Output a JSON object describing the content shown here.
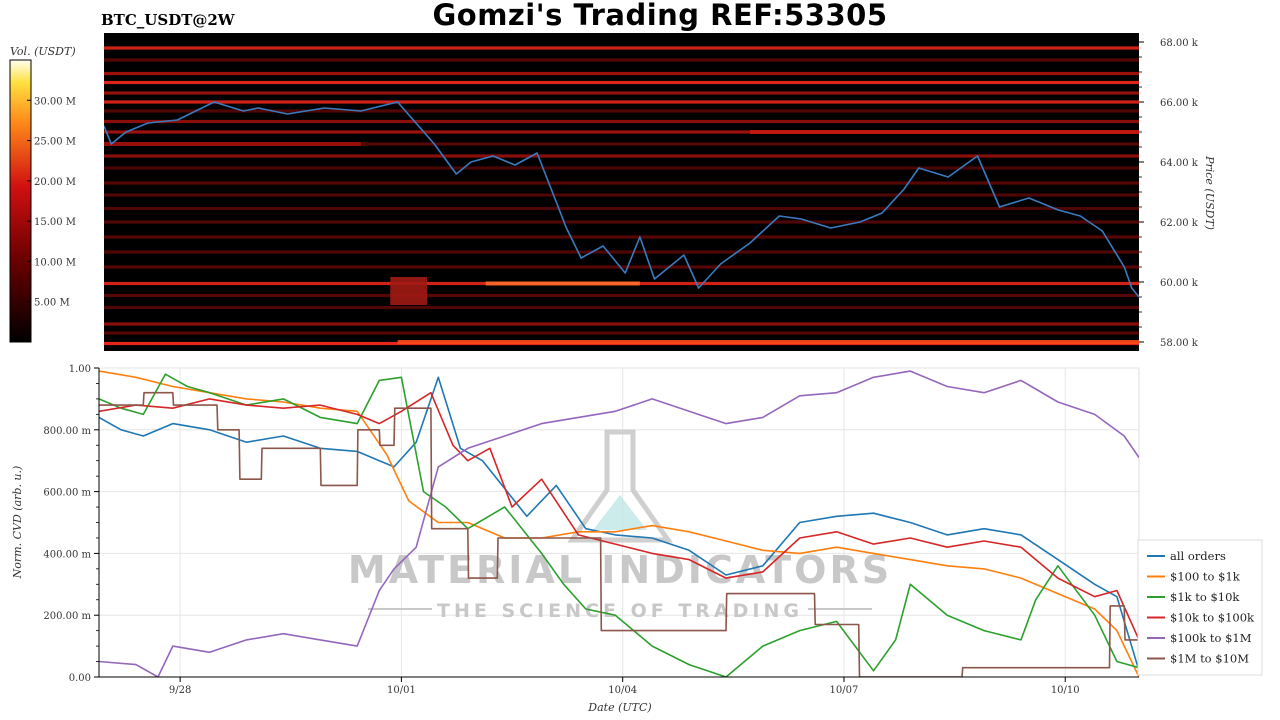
{
  "header": {
    "title": "Gomzi's Trading REF:53305",
    "symbol": "BTC_USDT@2W"
  },
  "watermark": {
    "line1": "MATERIAL INDICATORS",
    "line2": "THE SCIENCE OF TRADING"
  },
  "colors": {
    "price_line": "#3a7bbf",
    "heatmap_bg": "#000000",
    "heatmap_hot": "#ff3a10"
  },
  "chart_data": [
    {
      "type": "heatmap",
      "title": "",
      "colorbar_label": "Vol. (USDT)",
      "colorbar_ticks": [
        "5.00 M",
        "10.00 M",
        "15.00 M",
        "20.00 M",
        "25.00 M",
        "30.00 M"
      ],
      "colorbar_values": [
        5,
        10,
        15,
        20,
        25,
        30
      ],
      "colorbar_max": 35,
      "ylabel": "Price (USDT)",
      "y_ticks": [
        "58.00 k",
        "60.00 k",
        "62.00 k",
        "64.00 k",
        "66.00 k",
        "68.00 k"
      ],
      "y_values": [
        58000,
        60000,
        62000,
        64000,
        66000,
        68000
      ],
      "ylim": [
        57700,
        68300
      ],
      "xlim": [
        0,
        14.1
      ],
      "price_series": {
        "name": "price",
        "x": [
          0,
          0.1,
          0.3,
          0.6,
          1.0,
          1.5,
          1.9,
          2.1,
          2.5,
          3.0,
          3.5,
          4.0,
          4.5,
          4.8,
          5.0,
          5.3,
          5.6,
          5.9,
          6.3,
          6.5,
          6.8,
          7.1,
          7.3,
          7.5,
          7.9,
          8.1,
          8.4,
          8.8,
          9.2,
          9.5,
          9.9,
          10.3,
          10.6,
          10.9,
          11.1,
          11.5,
          11.9,
          12.2,
          12.6,
          13.0,
          13.3,
          13.6,
          13.9,
          14.0,
          14.1
        ],
        "y": [
          65200,
          64600,
          65000,
          65300,
          65400,
          66000,
          65700,
          65800,
          65600,
          65800,
          65700,
          66000,
          64600,
          63600,
          64000,
          64200,
          63900,
          64300,
          61800,
          60800,
          61200,
          60300,
          61500,
          60100,
          60900,
          59800,
          60600,
          61300,
          62200,
          62100,
          61800,
          62000,
          62300,
          63100,
          63800,
          63500,
          64200,
          62500,
          62800,
          62400,
          62200,
          61700,
          60500,
          59800,
          59500
        ]
      },
      "liquidity_levels": [
        {
          "price": 67800,
          "intensity": 0.55
        },
        {
          "price": 67400,
          "intensity": 0.35
        },
        {
          "price": 66950,
          "intensity": 0.5
        },
        {
          "price": 66650,
          "intensity": 0.6
        },
        {
          "price": 66300,
          "intensity": 0.45
        },
        {
          "price": 66000,
          "intensity": 0.55
        },
        {
          "price": 65700,
          "intensity": 0.3
        },
        {
          "price": 65350,
          "intensity": 0.4
        },
        {
          "price": 65000,
          "intensity": 0.5
        },
        {
          "price": 64600,
          "intensity": 0.35
        },
        {
          "price": 64200,
          "intensity": 0.4
        },
        {
          "price": 63800,
          "intensity": 0.25
        },
        {
          "price": 63300,
          "intensity": 0.35
        },
        {
          "price": 62900,
          "intensity": 0.3
        },
        {
          "price": 62450,
          "intensity": 0.3
        },
        {
          "price": 62000,
          "intensity": 0.3
        },
        {
          "price": 61500,
          "intensity": 0.35
        },
        {
          "price": 61000,
          "intensity": 0.3
        },
        {
          "price": 60500,
          "intensity": 0.35
        },
        {
          "price": 59950,
          "intensity": 0.55
        },
        {
          "price": 59550,
          "intensity": 0.35
        },
        {
          "price": 59150,
          "intensity": 0.3
        },
        {
          "price": 58600,
          "intensity": 0.4
        },
        {
          "price": 58300,
          "intensity": 0.35
        },
        {
          "price": 57950,
          "intensity": 0.65
        }
      ]
    },
    {
      "type": "line",
      "title": "",
      "xlabel": "Date (UTC)",
      "ylabel": "Norm. CVD (arb. u.)",
      "x_ticks": [
        "9/28",
        "10/01",
        "10/04",
        "10/07",
        "10/10"
      ],
      "x_tick_values": [
        1.1,
        4.1,
        7.1,
        10.1,
        13.1
      ],
      "xlim": [
        0,
        14.1
      ],
      "y_ticks": [
        "0.00",
        "200.00 m",
        "400.00 m",
        "600.00 m",
        "800.00 m",
        "1.00"
      ],
      "y_tick_values": [
        0,
        0.2,
        0.4,
        0.6,
        0.8,
        1.0
      ],
      "ylim": [
        0,
        1
      ],
      "legend": "center-right",
      "series": [
        {
          "name": "all orders",
          "color": "#1f77b4",
          "x": [
            0,
            0.3,
            0.6,
            1.0,
            1.5,
            2.0,
            2.5,
            3.0,
            3.5,
            4.0,
            4.3,
            4.6,
            4.9,
            5.2,
            5.5,
            5.8,
            6.2,
            6.6,
            7.0,
            7.5,
            8.0,
            8.5,
            9.0,
            9.5,
            10.0,
            10.5,
            11.0,
            11.5,
            12.0,
            12.5,
            13.0,
            13.5,
            13.8,
            14.1
          ],
          "y": [
            0.84,
            0.8,
            0.78,
            0.82,
            0.8,
            0.76,
            0.78,
            0.74,
            0.73,
            0.68,
            0.76,
            0.97,
            0.74,
            0.7,
            0.61,
            0.52,
            0.62,
            0.48,
            0.46,
            0.45,
            0.41,
            0.33,
            0.36,
            0.5,
            0.52,
            0.53,
            0.5,
            0.46,
            0.48,
            0.46,
            0.38,
            0.3,
            0.26,
            0.02
          ]
        },
        {
          "name": "$100 to $1k",
          "color": "#ff7f0e",
          "x": [
            0,
            0.5,
            1.0,
            1.5,
            2.0,
            2.5,
            3.0,
            3.5,
            3.9,
            4.2,
            4.6,
            5.0,
            5.5,
            6.0,
            6.5,
            7.0,
            7.5,
            8.0,
            8.5,
            9.0,
            9.5,
            10.0,
            10.5,
            11.0,
            11.5,
            12.0,
            12.5,
            13.0,
            13.5,
            13.8,
            14.1
          ],
          "y": [
            0.99,
            0.97,
            0.94,
            0.92,
            0.9,
            0.89,
            0.87,
            0.86,
            0.72,
            0.57,
            0.5,
            0.5,
            0.45,
            0.45,
            0.47,
            0.47,
            0.49,
            0.47,
            0.44,
            0.41,
            0.4,
            0.42,
            0.4,
            0.38,
            0.36,
            0.35,
            0.32,
            0.27,
            0.22,
            0.15,
            0.0
          ]
        },
        {
          "name": "$1k to $10k",
          "color": "#2ca02c",
          "x": [
            0,
            0.3,
            0.6,
            0.9,
            1.2,
            1.5,
            2.0,
            2.5,
            3.0,
            3.5,
            3.8,
            4.1,
            4.4,
            4.7,
            5.0,
            5.5,
            6.0,
            6.3,
            6.6,
            7.0,
            7.5,
            8.0,
            8.5,
            9.0,
            9.5,
            10.0,
            10.5,
            10.8,
            11.0,
            11.5,
            12.0,
            12.5,
            12.7,
            13.0,
            13.5,
            13.8,
            14.1
          ],
          "y": [
            0.9,
            0.87,
            0.85,
            0.98,
            0.94,
            0.92,
            0.88,
            0.9,
            0.84,
            0.82,
            0.96,
            0.97,
            0.6,
            0.55,
            0.48,
            0.55,
            0.4,
            0.3,
            0.22,
            0.2,
            0.1,
            0.04,
            0.0,
            0.1,
            0.15,
            0.18,
            0.02,
            0.12,
            0.3,
            0.2,
            0.15,
            0.12,
            0.25,
            0.36,
            0.2,
            0.05,
            0.03
          ]
        },
        {
          "name": "$10k to $100k",
          "color": "#d62728",
          "x": [
            0,
            0.5,
            1.0,
            1.5,
            2.0,
            2.5,
            3.0,
            3.5,
            3.8,
            4.1,
            4.5,
            4.8,
            5.0,
            5.3,
            5.6,
            6.0,
            6.5,
            7.0,
            7.5,
            8.0,
            8.5,
            9.0,
            9.5,
            10.0,
            10.5,
            11.0,
            11.5,
            12.0,
            12.5,
            13.0,
            13.5,
            13.8,
            14.1
          ],
          "y": [
            0.86,
            0.88,
            0.87,
            0.9,
            0.88,
            0.87,
            0.88,
            0.85,
            0.82,
            0.86,
            0.92,
            0.75,
            0.7,
            0.74,
            0.55,
            0.64,
            0.46,
            0.43,
            0.4,
            0.38,
            0.32,
            0.34,
            0.45,
            0.47,
            0.43,
            0.45,
            0.42,
            0.44,
            0.42,
            0.32,
            0.26,
            0.28,
            0.12
          ]
        },
        {
          "name": "$100k to $1M",
          "color": "#9467bd",
          "x": [
            0,
            0.5,
            0.8,
            1.0,
            1.5,
            2.0,
            2.5,
            3.0,
            3.5,
            3.8,
            4.0,
            4.3,
            4.6,
            5.0,
            5.5,
            6.0,
            6.5,
            7.0,
            7.5,
            8.0,
            8.5,
            9.0,
            9.5,
            10.0,
            10.5,
            11.0,
            11.5,
            12.0,
            12.5,
            13.0,
            13.5,
            13.9,
            14.1
          ],
          "y": [
            0.05,
            0.04,
            0.0,
            0.1,
            0.08,
            0.12,
            0.14,
            0.12,
            0.1,
            0.28,
            0.35,
            0.42,
            0.68,
            0.74,
            0.78,
            0.82,
            0.84,
            0.86,
            0.9,
            0.86,
            0.82,
            0.84,
            0.91,
            0.92,
            0.97,
            0.99,
            0.94,
            0.92,
            0.96,
            0.89,
            0.85,
            0.78,
            0.71
          ]
        },
        {
          "name": "$1M to $10M",
          "color": "#8c564b",
          "x": [
            0,
            0.6,
            0.61,
            1.0,
            1.01,
            1.6,
            1.61,
            1.9,
            1.91,
            2.2,
            2.21,
            3.0,
            3.01,
            3.5,
            3.51,
            3.8,
            3.81,
            4.0,
            4.01,
            4.5,
            4.51,
            5.0,
            5.01,
            5.4,
            5.41,
            6.8,
            6.81,
            8.5,
            8.51,
            9.7,
            9.71,
            10.3,
            10.31,
            11.7,
            11.71,
            13.7,
            13.71,
            13.9,
            13.91,
            14.1
          ],
          "y": [
            0.88,
            0.88,
            0.92,
            0.92,
            0.88,
            0.88,
            0.8,
            0.8,
            0.64,
            0.64,
            0.74,
            0.74,
            0.62,
            0.62,
            0.8,
            0.8,
            0.75,
            0.75,
            0.87,
            0.87,
            0.48,
            0.48,
            0.32,
            0.32,
            0.45,
            0.45,
            0.15,
            0.15,
            0.27,
            0.27,
            0.17,
            0.17,
            0.0,
            0.0,
            0.03,
            0.03,
            0.23,
            0.23,
            0.12,
            0.12
          ]
        }
      ]
    }
  ]
}
